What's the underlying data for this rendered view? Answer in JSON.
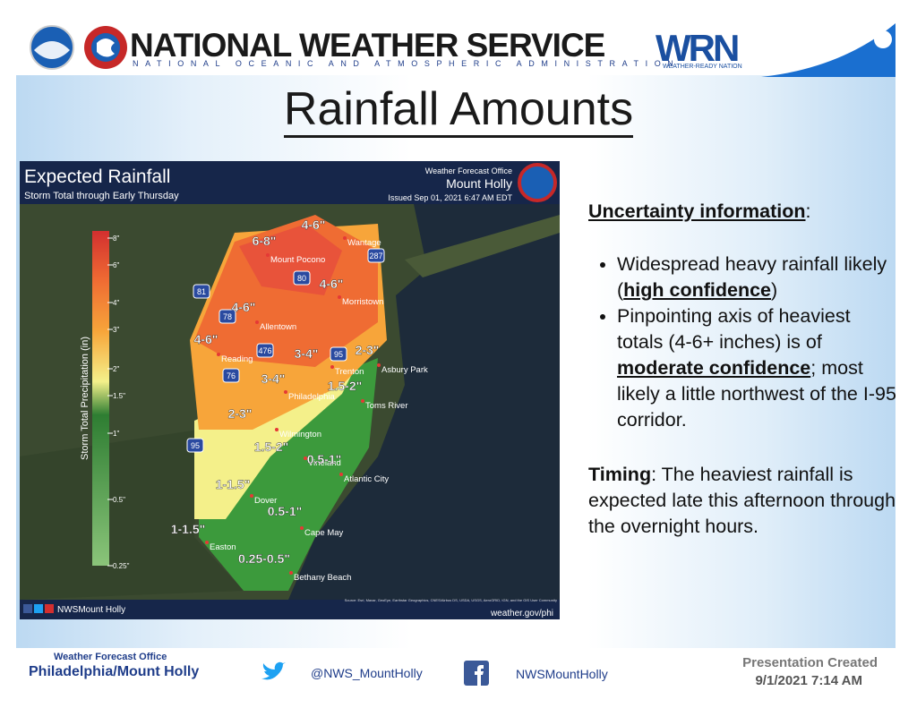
{
  "header": {
    "org": "NATIONAL WEATHER SERVICE",
    "org_sub": "NATIONAL OCEANIC AND ATMOSPHERIC ADMINISTRATION",
    "wrn": "WRN",
    "wrn_sub": "WEATHER-READY NATION"
  },
  "title": "Rainfall Amounts",
  "map": {
    "title": "Expected Rainfall",
    "subtitle": "Storm Total through Early Thursday",
    "office_label": "Weather Forecast Office",
    "office": "Mount Holly",
    "issued": "Issued Sep 01, 2021 6:47 AM EDT",
    "legend_title": "Storm Total Precipitation (in)",
    "legend_labels": [
      "8\"",
      "6\"",
      "4\"",
      "3\"",
      "2\"",
      "1.5\"",
      "1\"",
      "0.5\"",
      "0.25\""
    ],
    "amounts": [
      "4-6\"",
      "6-8\"",
      "4-6\"",
      "4-6\"",
      "4-6\"",
      "3-4\"",
      "2-3\"",
      "3-4\"",
      "1.5-2\"",
      "2-3\"",
      "1.5-2\"",
      "0.5-1\"",
      "1-1.5\"",
      "0.5-1\"",
      "1-1.5\"",
      "0.25-0.5\""
    ],
    "places": [
      "Wantage",
      "Mount Pocono",
      "Morristown",
      "Allentown",
      "Reading",
      "Trenton",
      "Asbury Park",
      "Philadelphia",
      "Toms River",
      "Wilmington",
      "Vineland",
      "Atlantic City",
      "Dover",
      "Cape May",
      "Easton",
      "Bethany Beach"
    ],
    "highways": [
      "287",
      "80",
      "81",
      "78",
      "476",
      "95",
      "76",
      "95"
    ],
    "footer_left": "NWSMount Holly",
    "footer_right": "weather.gov/phi",
    "source": "Source: Esri, Maxar, GeoEye, Earthstar Geographics, CNES/Airbus DS, USDA, USGS, AeroGRID, IGN, and the GIS User Community"
  },
  "panel": {
    "heading": [
      "Uncertainty information",
      ":"
    ],
    "bullets": [
      [
        "Widespread heavy rainfall likely (",
        "high confidence",
        ")"
      ],
      [
        "Pinpointing axis of heaviest totals (4-6+ inches) is of ",
        "moderate confidence",
        "; most likely a little northwest of the I-95 corridor."
      ]
    ],
    "timing": [
      "Timing",
      ": The heaviest rainfall is expected late this afternoon through the overnight hours."
    ]
  },
  "footer": {
    "office_label": "Weather Forecast Office",
    "office": "Philadelphia/Mount Holly",
    "twitter": "@NWS_MountHolly",
    "facebook": "NWSMountHolly",
    "created_label": "Presentation Created",
    "created": "9/1/2021 7:14 AM"
  }
}
